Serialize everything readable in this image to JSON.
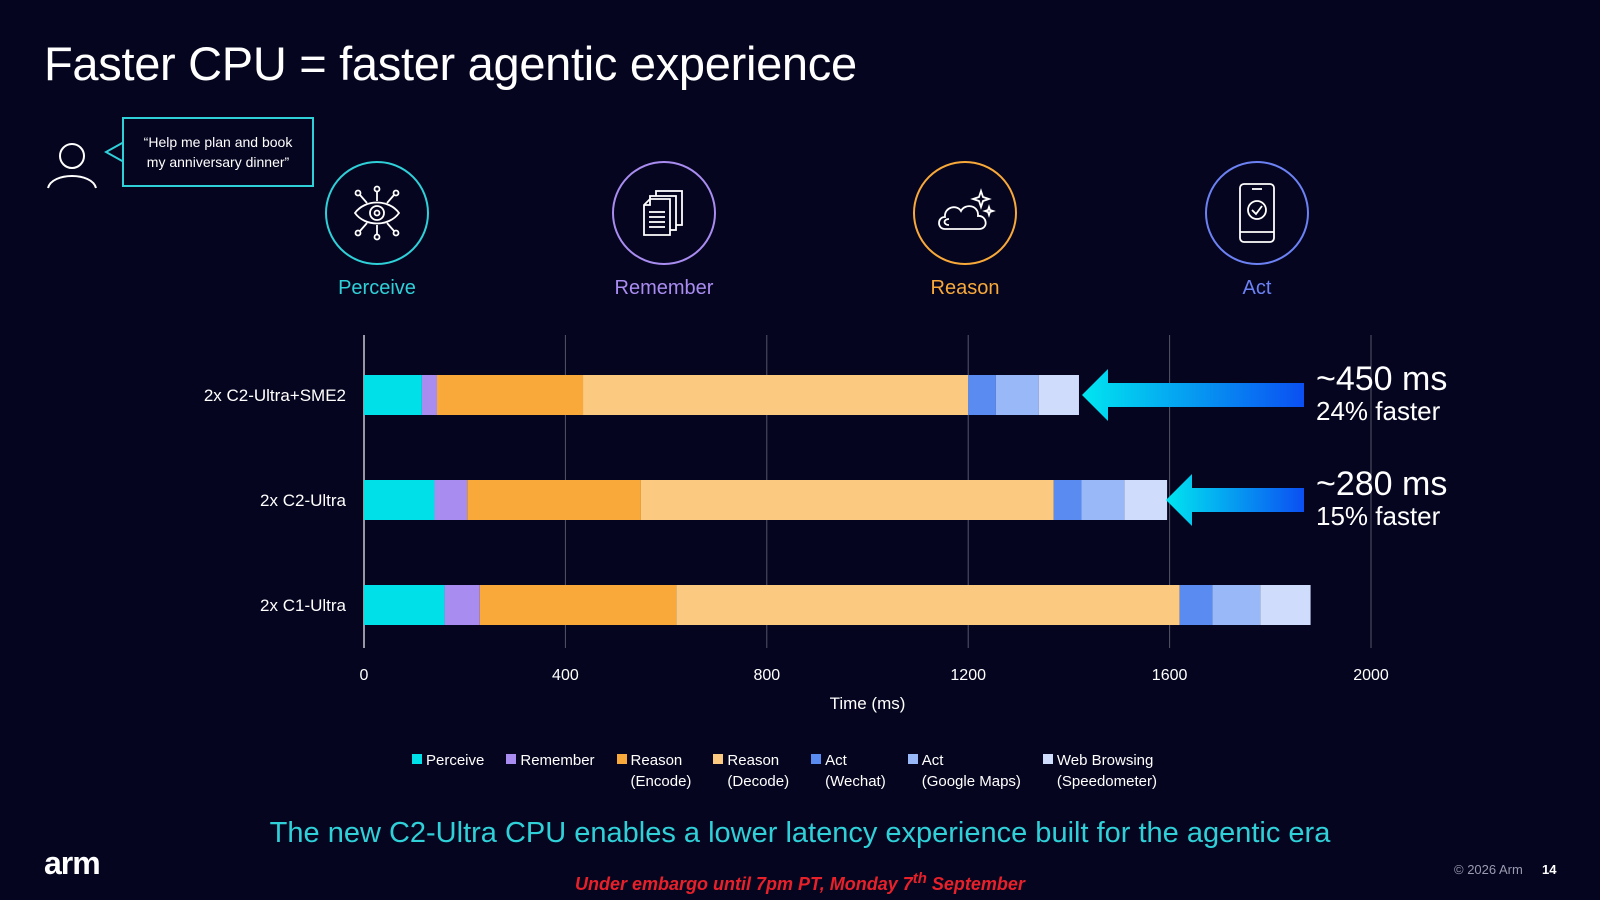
{
  "title": "Faster CPU = faster agentic experience",
  "prompt_bubble": {
    "line1": "“Help me plan and book",
    "line2": "my anniversary dinner”"
  },
  "stages": [
    {
      "label": "Perceive",
      "color": "#2fd0d8",
      "icon": "eye-network-icon"
    },
    {
      "label": "Remember",
      "color": "#a98cf0",
      "icon": "documents-icon"
    },
    {
      "label": "Reason",
      "color": "#f8a93a",
      "icon": "cloud-sparkle-icon"
    },
    {
      "label": "Act",
      "color": "#6c82f4",
      "icon": "phone-check-icon"
    }
  ],
  "chart_data": {
    "type": "bar",
    "orientation": "horizontal",
    "stacked": true,
    "xlabel": "Time (ms)",
    "xlim": [
      0,
      2000
    ],
    "xticks": [
      0,
      400,
      800,
      1200,
      1600,
      2000
    ],
    "grid": true,
    "legend": "bottom",
    "categories": [
      "2x C2-Ultra+SME2",
      "2x C2-Ultra",
      "2x C1-Ultra"
    ],
    "series": [
      {
        "name": "Perceive",
        "color": "#00e0e8",
        "values": [
          115,
          140,
          160
        ]
      },
      {
        "name": "Remember",
        "color": "#a98cf0",
        "values": [
          30,
          65,
          70
        ]
      },
      {
        "name": "Reason (Encode)",
        "color": "#f8a93a",
        "values": [
          290,
          345,
          390
        ]
      },
      {
        "name": "Reason (Decode)",
        "color": "#fbca80",
        "values": [
          765,
          820,
          1000
        ]
      },
      {
        "name": "Act (Wechat)",
        "color": "#5a8bf0",
        "values": [
          55,
          55,
          65
        ]
      },
      {
        "name": "Act (Google Maps)",
        "color": "#98b8f8",
        "values": [
          85,
          85,
          95
        ]
      },
      {
        "name": "Web Browsing (Speedometer)",
        "color": "#cfdcfc",
        "values": [
          80,
          85,
          100
        ]
      }
    ]
  },
  "legend_items": [
    {
      "line1": "Perceive",
      "line2": "",
      "color": "#00e0e8"
    },
    {
      "line1": "Remember",
      "line2": "",
      "color": "#a98cf0"
    },
    {
      "line1": "Reason",
      "line2": "(Encode)",
      "color": "#f8a93a"
    },
    {
      "line1": "Reason",
      "line2": "(Decode)",
      "color": "#fbca80"
    },
    {
      "line1": "Act",
      "line2": "(Wechat)",
      "color": "#5a8bf0"
    },
    {
      "line1": "Act",
      "line2": "(Google Maps)",
      "color": "#98b8f8"
    },
    {
      "line1": "Web Browsing",
      "line2": "(Speedometer)",
      "color": "#cfdcfc"
    }
  ],
  "annotations": [
    {
      "ms": "~450 ms",
      "pct": "24% faster"
    },
    {
      "ms": "~280 ms",
      "pct": "15% faster"
    }
  ],
  "tagline": "The new C2-Ultra CPU enables a lower latency experience built for the agentic era",
  "embargo": {
    "main": "Under embargo until 7pm PT, Monday 7",
    "sup": "th",
    "tail": " September"
  },
  "footer": {
    "logo": "arm",
    "copyright": "© 2026 Arm",
    "page": "14"
  }
}
